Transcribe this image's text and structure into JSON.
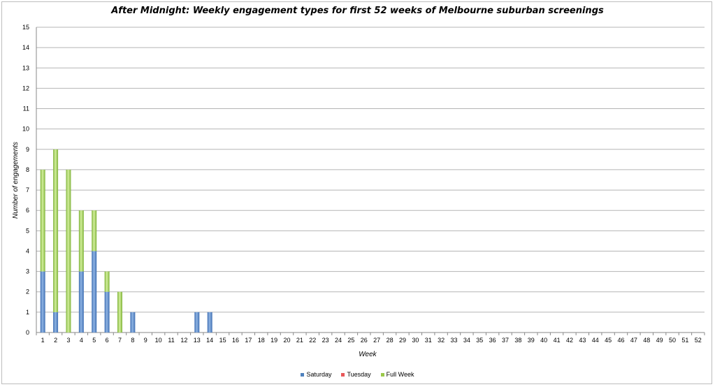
{
  "chart_data": {
    "type": "bar",
    "stacked": true,
    "title": "After Midnight: Weekly engagement types for first 52 weeks of Melbourne suburban screenings",
    "xlabel": "Week",
    "ylabel": "Number of engagements",
    "ylim": [
      0,
      15
    ],
    "yticks": [
      0,
      1,
      2,
      3,
      4,
      5,
      6,
      7,
      8,
      9,
      10,
      11,
      12,
      13,
      14,
      15
    ],
    "grid": true,
    "legend_position": "bottom",
    "categories": [
      "1",
      "2",
      "3",
      "4",
      "5",
      "6",
      "7",
      "8",
      "9",
      "10",
      "11",
      "12",
      "13",
      "14",
      "15",
      "16",
      "17",
      "18",
      "19",
      "20",
      "21",
      "22",
      "23",
      "24",
      "25",
      "26",
      "27",
      "28",
      "29",
      "30",
      "31",
      "32",
      "33",
      "34",
      "35",
      "36",
      "37",
      "38",
      "39",
      "40",
      "41",
      "42",
      "43",
      "44",
      "45",
      "46",
      "47",
      "48",
      "49",
      "50",
      "51",
      "52"
    ],
    "series": [
      {
        "name": "Saturday",
        "color": "#4f81bd",
        "values": [
          3,
          1,
          0,
          3,
          4,
          2,
          0,
          1,
          0,
          0,
          0,
          0,
          1,
          1,
          0,
          0,
          0,
          0,
          0,
          0,
          0,
          0,
          0,
          0,
          0,
          0,
          0,
          0,
          0,
          0,
          0,
          0,
          0,
          0,
          0,
          0,
          0,
          0,
          0,
          0,
          0,
          0,
          0,
          0,
          0,
          0,
          0,
          0,
          0,
          0,
          0,
          0
        ]
      },
      {
        "name": "Tuesday",
        "color": "#e8585a",
        "values": [
          0,
          0,
          0,
          0,
          0,
          0,
          0,
          0,
          0,
          0,
          0,
          0,
          0,
          0,
          0,
          0,
          0,
          0,
          0,
          0,
          0,
          0,
          0,
          0,
          0,
          0,
          0,
          0,
          0,
          0,
          0,
          0,
          0,
          0,
          0,
          0,
          0,
          0,
          0,
          0,
          0,
          0,
          0,
          0,
          0,
          0,
          0,
          0,
          0,
          0,
          0,
          0
        ]
      },
      {
        "name": "Full Week",
        "color": "#9bc94a",
        "values": [
          5,
          8,
          8,
          3,
          2,
          1,
          2,
          0,
          0,
          0,
          0,
          0,
          0,
          0,
          0,
          0,
          0,
          0,
          0,
          0,
          0,
          0,
          0,
          0,
          0,
          0,
          0,
          0,
          0,
          0,
          0,
          0,
          0,
          0,
          0,
          0,
          0,
          0,
          0,
          0,
          0,
          0,
          0,
          0,
          0,
          0,
          0,
          0,
          0,
          0,
          0,
          0
        ]
      }
    ]
  }
}
